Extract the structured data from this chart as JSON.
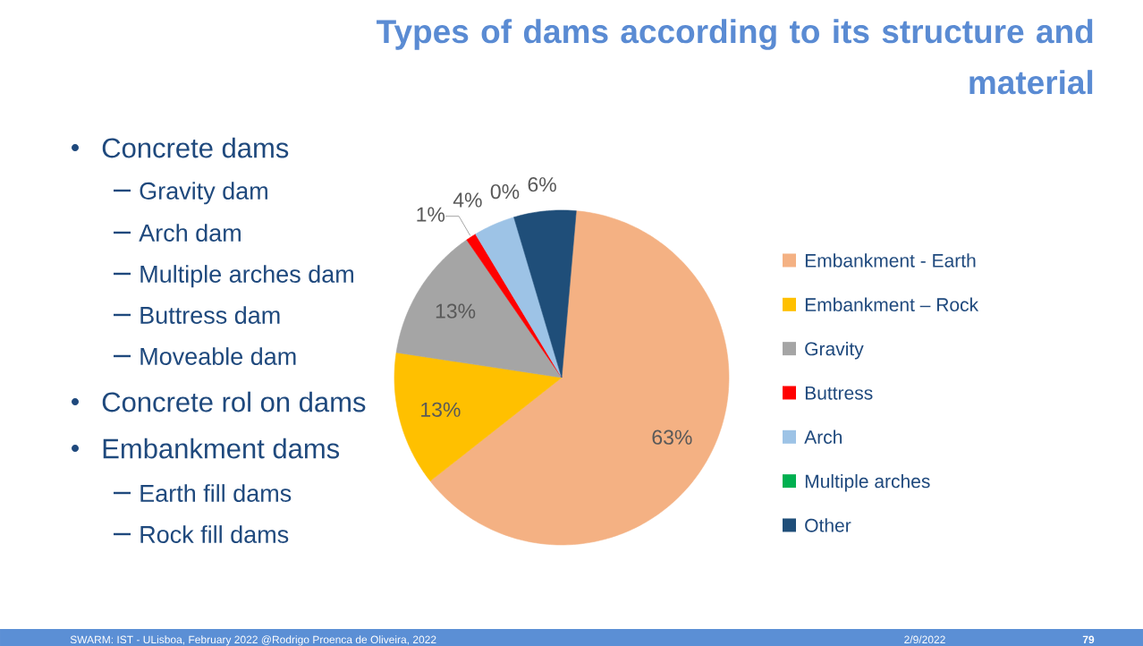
{
  "chart_data": {
    "type": "pie",
    "title": "Types of dams according to its structure and material",
    "categories": [
      "Embankment - Earth",
      "Embankment – Rock",
      "Gravity",
      "Buttress",
      "Arch",
      "Multiple arches",
      "Other"
    ],
    "values": [
      63,
      13,
      13,
      1,
      4,
      0,
      6
    ],
    "value_labels": [
      "63%",
      "13%",
      "13%",
      "1%",
      "4%",
      "0%",
      "6%"
    ],
    "colors": [
      "#f4b183",
      "#ffc000",
      "#a5a5a5",
      "#ff0000",
      "#9dc3e6",
      "#00b050",
      "#1f4e79"
    ],
    "legend": "right",
    "annotations": [
      "Concrete dams",
      "Gravity dam",
      "Arch dam",
      "Multiple arches dam",
      "Buttress dam",
      "Moveable dam",
      "Concrete rol on dams",
      "Embankment dams",
      "Earth fill dams",
      "Rock fill dams",
      "SWARM: IST - ULisboa, February 2022 @Rodrigo Proenca de Oliveira, 2022",
      "2/9/2022",
      "79"
    ]
  }
}
